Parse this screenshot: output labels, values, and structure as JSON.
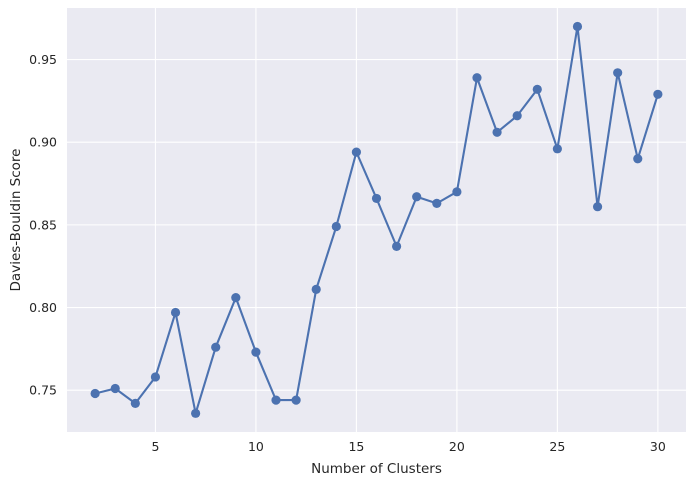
{
  "chart_data": {
    "type": "line",
    "title": "",
    "xlabel": "Number of Clusters",
    "ylabel": "Davies-Bouldin Score",
    "x": [
      2,
      3,
      4,
      5,
      6,
      7,
      8,
      9,
      10,
      11,
      12,
      13,
      14,
      15,
      16,
      17,
      18,
      19,
      20,
      21,
      22,
      23,
      24,
      25,
      26,
      27,
      28,
      29,
      30
    ],
    "series": [
      {
        "values": [
          0.748,
          0.751,
          0.742,
          0.758,
          0.797,
          0.736,
          0.776,
          0.806,
          0.773,
          0.744,
          0.744,
          0.811,
          0.849,
          0.894,
          0.866,
          0.837,
          0.867,
          0.863,
          0.87,
          0.939,
          0.906,
          0.916,
          0.932,
          0.896,
          0.97,
          0.861,
          0.942,
          0.89,
          0.929
        ],
        "color": "#4c72b0"
      }
    ],
    "xlim": [
      0.6,
      31.4
    ],
    "ylim": [
      0.7247,
      0.9812
    ],
    "xticks": [
      "5",
      "10",
      "15",
      "20",
      "25",
      "30"
    ],
    "yticks": [
      "0.75",
      "0.80",
      "0.85",
      "0.90",
      "0.95"
    ],
    "grid": true,
    "legend": "none",
    "style": "seaborn-darkgrid",
    "background": "#eaeaf2",
    "grid_color": "#ffffff"
  }
}
